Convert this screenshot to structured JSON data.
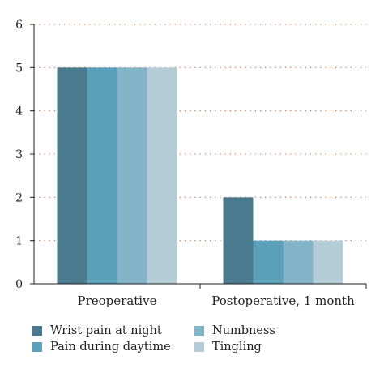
{
  "chart_data": {
    "type": "bar",
    "categories": [
      "Preoperative",
      "Postoperative, 1 month"
    ],
    "series": [
      {
        "name": "Wrist pain at night",
        "color": "#4a7a8e",
        "values": [
          5,
          2
        ]
      },
      {
        "name": "Pain during daytime",
        "color": "#5aa0b8",
        "values": [
          5,
          1
        ]
      },
      {
        "name": "Numbness",
        "color": "#82b3c6",
        "values": [
          5,
          1
        ]
      },
      {
        "name": "Tingling",
        "color": "#b4ccd6",
        "values": [
          5,
          1
        ]
      }
    ],
    "ylim": [
      0,
      6
    ],
    "yticks": [
      "0",
      "1",
      "2",
      "3",
      "4",
      "5",
      "6"
    ],
    "grid": "dotted horizontal",
    "legend_position": "bottom"
  }
}
